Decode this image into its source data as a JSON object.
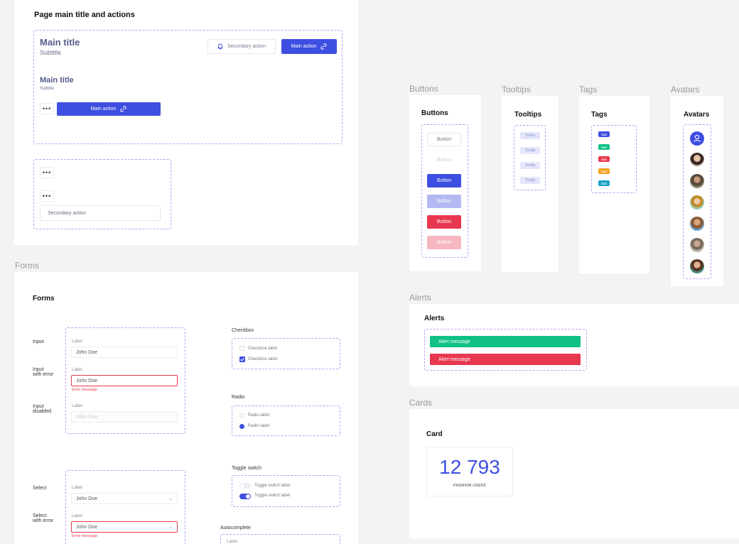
{
  "page_header": {
    "title": "Page main title and actions",
    "main_title": "Main title",
    "subtitle": "Subtitle",
    "secondary_action": "Secondary action",
    "main_action": "Main action",
    "small_title": "Main title",
    "small_subtitle": "Subtitle",
    "small_main_action": "Main action",
    "more_glyph": "•••",
    "small_secondary_action": "Secondary action"
  },
  "forms": {
    "frame_label": "Forms",
    "title": "Forms",
    "rows": {
      "input": "Input",
      "input_error": "Input\nwith error",
      "input_disabled": "Input\ndisabled",
      "select": "Select",
      "select_error": "Select\nwith error"
    },
    "field_label": "Label",
    "value": "John Doe",
    "error_message": "Error message",
    "checkbox": {
      "title": "Checkbox",
      "unchecked_label": "Checkbox label",
      "checked_label": "Checkbox label"
    },
    "radio": {
      "title": "Radio",
      "unselected_label": "Radio label",
      "selected_label": "Radio label"
    },
    "toggle": {
      "title": "Toggle switch",
      "off_label": "Toggle switch label",
      "on_label": "Toggle switch label"
    },
    "autocomplete": {
      "title": "Autocomplete",
      "field_label": "Label"
    }
  },
  "buttons": {
    "frame_label": "Buttons",
    "title": "Buttons",
    "items": [
      "Button",
      "Button",
      "Button",
      "Button",
      "Button",
      "Button"
    ]
  },
  "tooltips": {
    "frame_label": "Tooltips",
    "title": "Tooltips",
    "items": [
      "Tooltip",
      "Tooltip",
      "Tooltip",
      "Tooltip"
    ]
  },
  "tags": {
    "frame_label": "Tags",
    "title": "Tags",
    "items": [
      "TAG",
      "TAG",
      "TAG",
      "TAG",
      "TAG"
    ],
    "colors": [
      "#3d4fe0",
      "#10c186",
      "#e8384f",
      "#f5a623",
      "#1aa3c4"
    ]
  },
  "avatars": {
    "frame_label": "Avatars",
    "title": "Avatars"
  },
  "alerts": {
    "frame_label": "Alerts",
    "title": "Alerts",
    "success": "Alert message",
    "error": "Alert message"
  },
  "cards": {
    "frame_label": "Cards",
    "title": "Card",
    "value": "12 793",
    "caption": "PREMIUM USERS"
  },
  "colors": {
    "primary": "#3d4fe0",
    "primary_light": "#b3b9f2",
    "danger": "#e8384f",
    "danger_light": "#f6b7c0",
    "success": "#10c186",
    "dashed": "#c29cf2"
  }
}
